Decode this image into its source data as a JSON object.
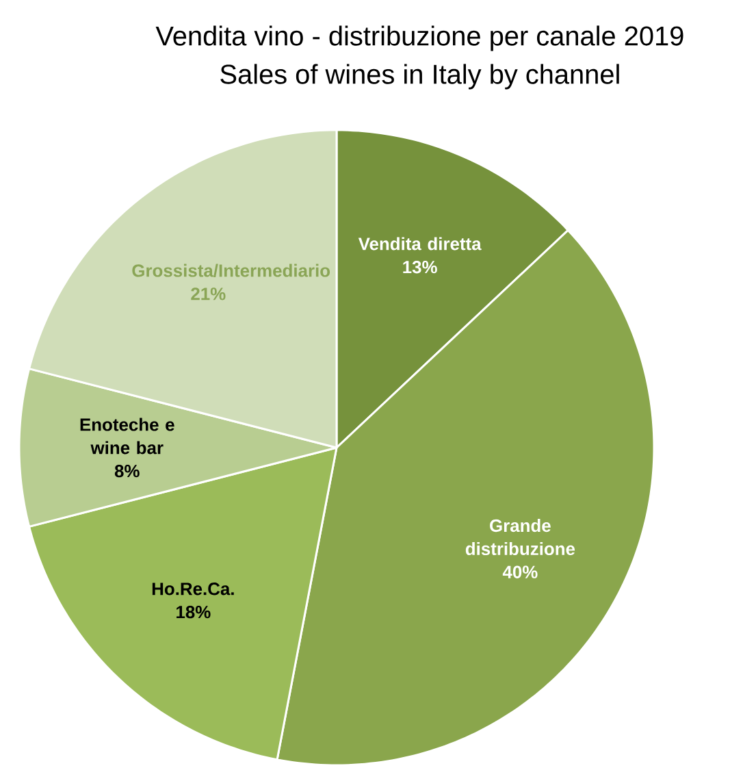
{
  "chart_data": {
    "type": "pie",
    "title": "Vendita vino - distribuzione per canale 2019",
    "subtitle": "Sales of wines in Italy by channel",
    "categories": [
      "Vendita diretta",
      "Grande distribuzione",
      "Ho.Re.Ca.",
      "Enoteche e wine bar",
      "Grossista/Intermediario"
    ],
    "values": [
      13,
      40,
      18,
      8,
      21
    ],
    "value_labels": [
      "13%",
      "40%",
      "18%",
      "8%",
      "21%"
    ],
    "colors": [
      "#76923c",
      "#8aa64c",
      "#9bbb59",
      "#b8cd91",
      "#d0ddb8"
    ]
  }
}
